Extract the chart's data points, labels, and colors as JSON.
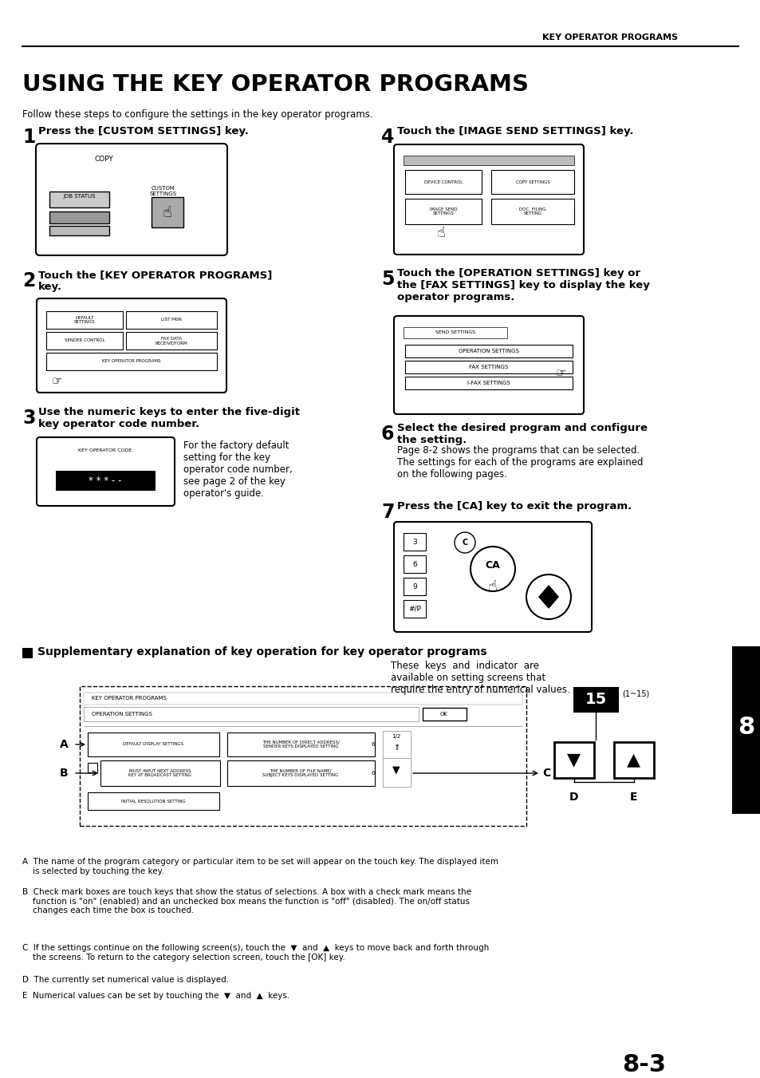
{
  "page_header": "KEY OPERATOR PROGRAMS",
  "main_title": "USING THE KEY OPERATOR PROGRAMS",
  "intro_text": "Follow these steps to configure the settings in the key operator programs.",
  "page_number": "8-3",
  "bg_color": "#ffffff",
  "text_color": "#000000",
  "section_num": "8",
  "step3_body": "For the factory default\nsetting for the key\noperator code number,\nsee page 2 of the key\noperator's guide.",
  "step6_body": "Page 8-2 shows the programs that can be selected.\nThe settings for each of the programs are explained\non the following pages.",
  "supp_title": "Supplementary explanation of key operation for key operator programs",
  "supp_body": "These  keys  and  indicator  are\navailable on setting screens that\nrequire the entry of numerical values.",
  "notes_A": "A  The name of the program category or particular item to be set will appear on the touch key. The displayed item\n    is selected by touching the key.",
  "notes_B": "B  Check mark boxes are touch keys that show the status of selections. A box with a check mark means the\n    function is \"on\" (enabled) and an unchecked box means the function is \"off\" (disabled). The on/off status\n    changes each time the box is touched.",
  "notes_C": "C  If the settings continue on the following screen(s), touch the  ▼  and  ▲  keys to move back and forth through\n    the screens. To return to the category selection screen, touch the [OK] key.",
  "notes_D": "D  The currently set numerical value is displayed.",
  "notes_E": "E  Numerical values can be set by touching the  ▼  and  ▲  keys."
}
